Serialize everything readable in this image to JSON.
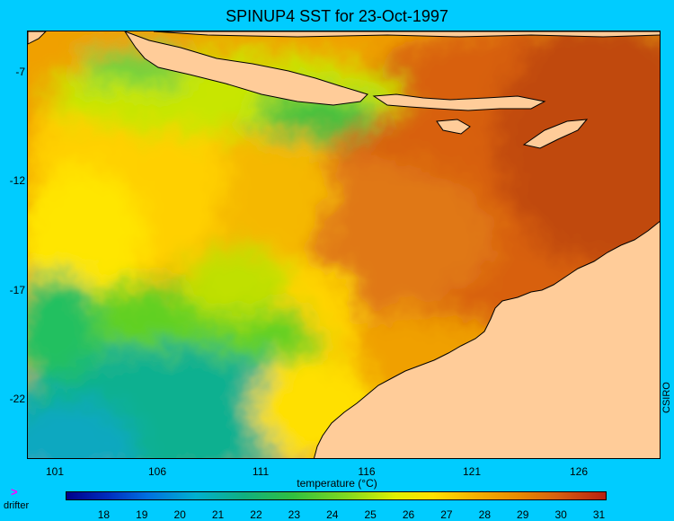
{
  "title": "SPINUP4 SST for 23-Oct-1997",
  "credit": "CSIRO",
  "colorbar": {
    "label": "temperature (°C)",
    "ticks": [
      "18",
      "19",
      "20",
      "21",
      "22",
      "23",
      "24",
      "25",
      "26",
      "27",
      "28",
      "29",
      "30",
      "31"
    ],
    "range": [
      17,
      31.2
    ]
  },
  "axes": {
    "y_ticks": [
      "-7",
      "-12",
      "-17",
      "-22"
    ],
    "x_ticks": [
      "101",
      "106",
      "111",
      "116",
      "121",
      "126"
    ],
    "lat_range": [
      -25.5,
      -5.3
    ],
    "lon_range": [
      99.6,
      129.4
    ]
  },
  "legend": {
    "marker": ">",
    "label": "drifter"
  },
  "colors": {
    "background": "#00ccff",
    "land": "#ffcc99",
    "marker": "#ff00ff"
  }
}
